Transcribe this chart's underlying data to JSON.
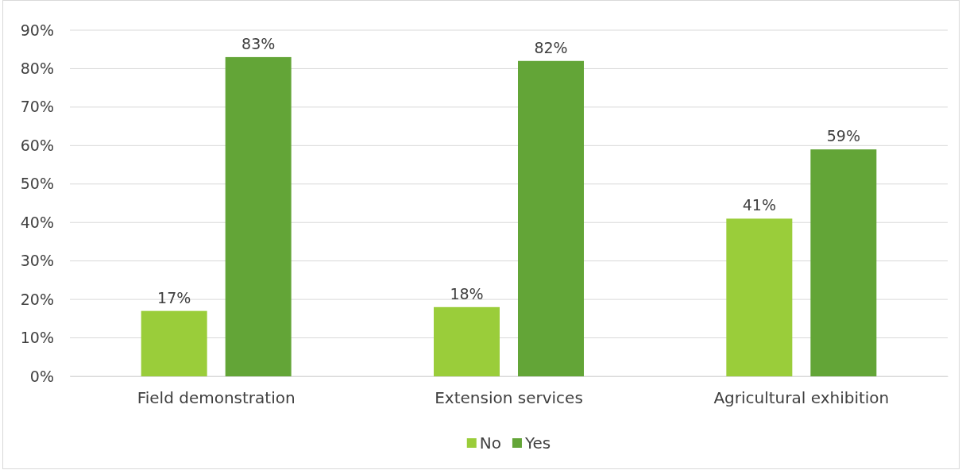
{
  "chart_data": {
    "type": "bar",
    "categories": [
      "Field demonstration",
      "Extension services",
      "Agricultural exhibition"
    ],
    "series": [
      {
        "name": "No",
        "color": "#9acd3a",
        "values": [
          17,
          18,
          41
        ],
        "value_labels": [
          "17%",
          "18%",
          "41%"
        ]
      },
      {
        "name": "Yes",
        "color": "#63a537",
        "values": [
          83,
          82,
          59
        ],
        "value_labels": [
          "83%",
          "82%",
          "59%"
        ]
      }
    ],
    "ylim": [
      0,
      90
    ],
    "yticks": [
      {
        "value": 0,
        "label": "0%"
      },
      {
        "value": 10,
        "label": "10%"
      },
      {
        "value": 20,
        "label": "20%"
      },
      {
        "value": 30,
        "label": "30%"
      },
      {
        "value": 40,
        "label": "40%"
      },
      {
        "value": 50,
        "label": "50%"
      },
      {
        "value": 60,
        "label": "60%"
      },
      {
        "value": 70,
        "label": "70%"
      },
      {
        "value": 80,
        "label": "80%"
      },
      {
        "value": 90,
        "label": "90%"
      }
    ],
    "grid": "y",
    "legend": "bottom"
  }
}
